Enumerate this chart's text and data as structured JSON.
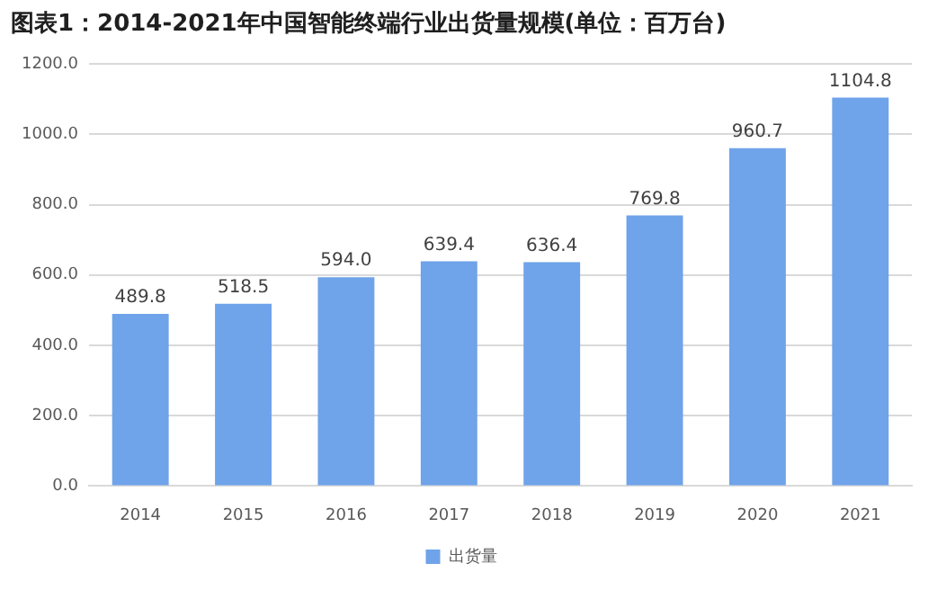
{
  "chart_data": {
    "type": "bar",
    "title": "图表1：2014-2021年中国智能终端行业出货量规模(单位：百万台)",
    "categories": [
      "2014",
      "2015",
      "2016",
      "2017",
      "2018",
      "2019",
      "2020",
      "2021"
    ],
    "series": [
      {
        "name": "出货量",
        "color": "#6fa3ea",
        "values": [
          489.8,
          518.5,
          594.0,
          639.4,
          636.4,
          769.8,
          960.7,
          1104.8
        ],
        "value_labels": [
          "489.8",
          "518.5",
          "594.0",
          "639.4",
          "636.4",
          "769.8",
          "960.7",
          "1104.8"
        ]
      }
    ],
    "ylim": [
      0,
      1200
    ],
    "yticks": [
      {
        "value": 0,
        "label": "0.0"
      },
      {
        "value": 200,
        "label": "200.0"
      },
      {
        "value": 400,
        "label": "400.0"
      },
      {
        "value": 600,
        "label": "600.0"
      },
      {
        "value": 800,
        "label": "800.0"
      },
      {
        "value": 1000,
        "label": "1000.0"
      },
      {
        "value": 1200,
        "label": "1200.0"
      }
    ],
    "grid": "y",
    "legend": "bottom"
  }
}
